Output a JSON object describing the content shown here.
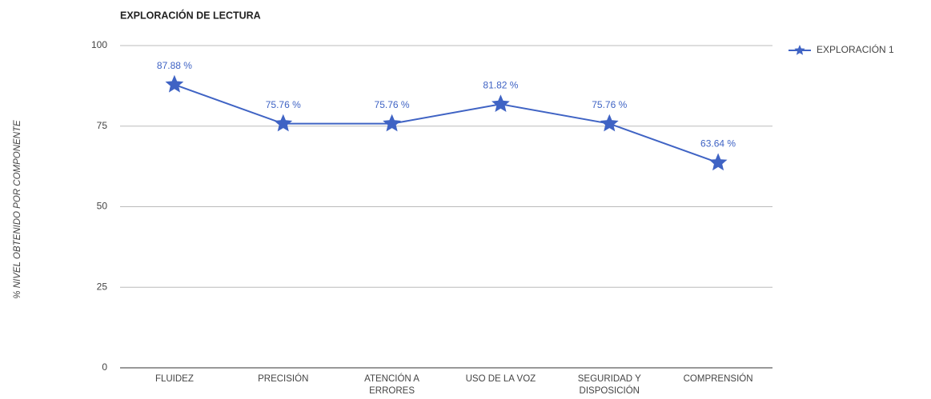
{
  "chart_data": {
    "type": "line",
    "title": "EXPLORACIÓN DE LECTURA",
    "y_label": "% NIVEL OBTENIDO POR COMPONENTE",
    "categories": [
      "FLUIDEZ",
      "PRECISIÓN",
      "ATENCIÓN A ERRORES",
      "USO DE LA VOZ",
      "SEGURIDAD Y DISPOSICIÓN",
      "COMPRENSIÓN"
    ],
    "series": [
      {
        "name": "EXPLORACIÓN 1",
        "color": "#3f63c4",
        "values": [
          87.88,
          75.76,
          75.76,
          81.82,
          75.76,
          63.64
        ],
        "value_labels": [
          "87.88 %",
          "75.76 %",
          "75.76 %",
          "81.82 %",
          "75.76 %",
          "63.64 %"
        ]
      }
    ],
    "ylim": [
      0,
      100
    ],
    "yticks": [
      0,
      25,
      50,
      75,
      100
    ],
    "grid": true,
    "legend": "right"
  }
}
